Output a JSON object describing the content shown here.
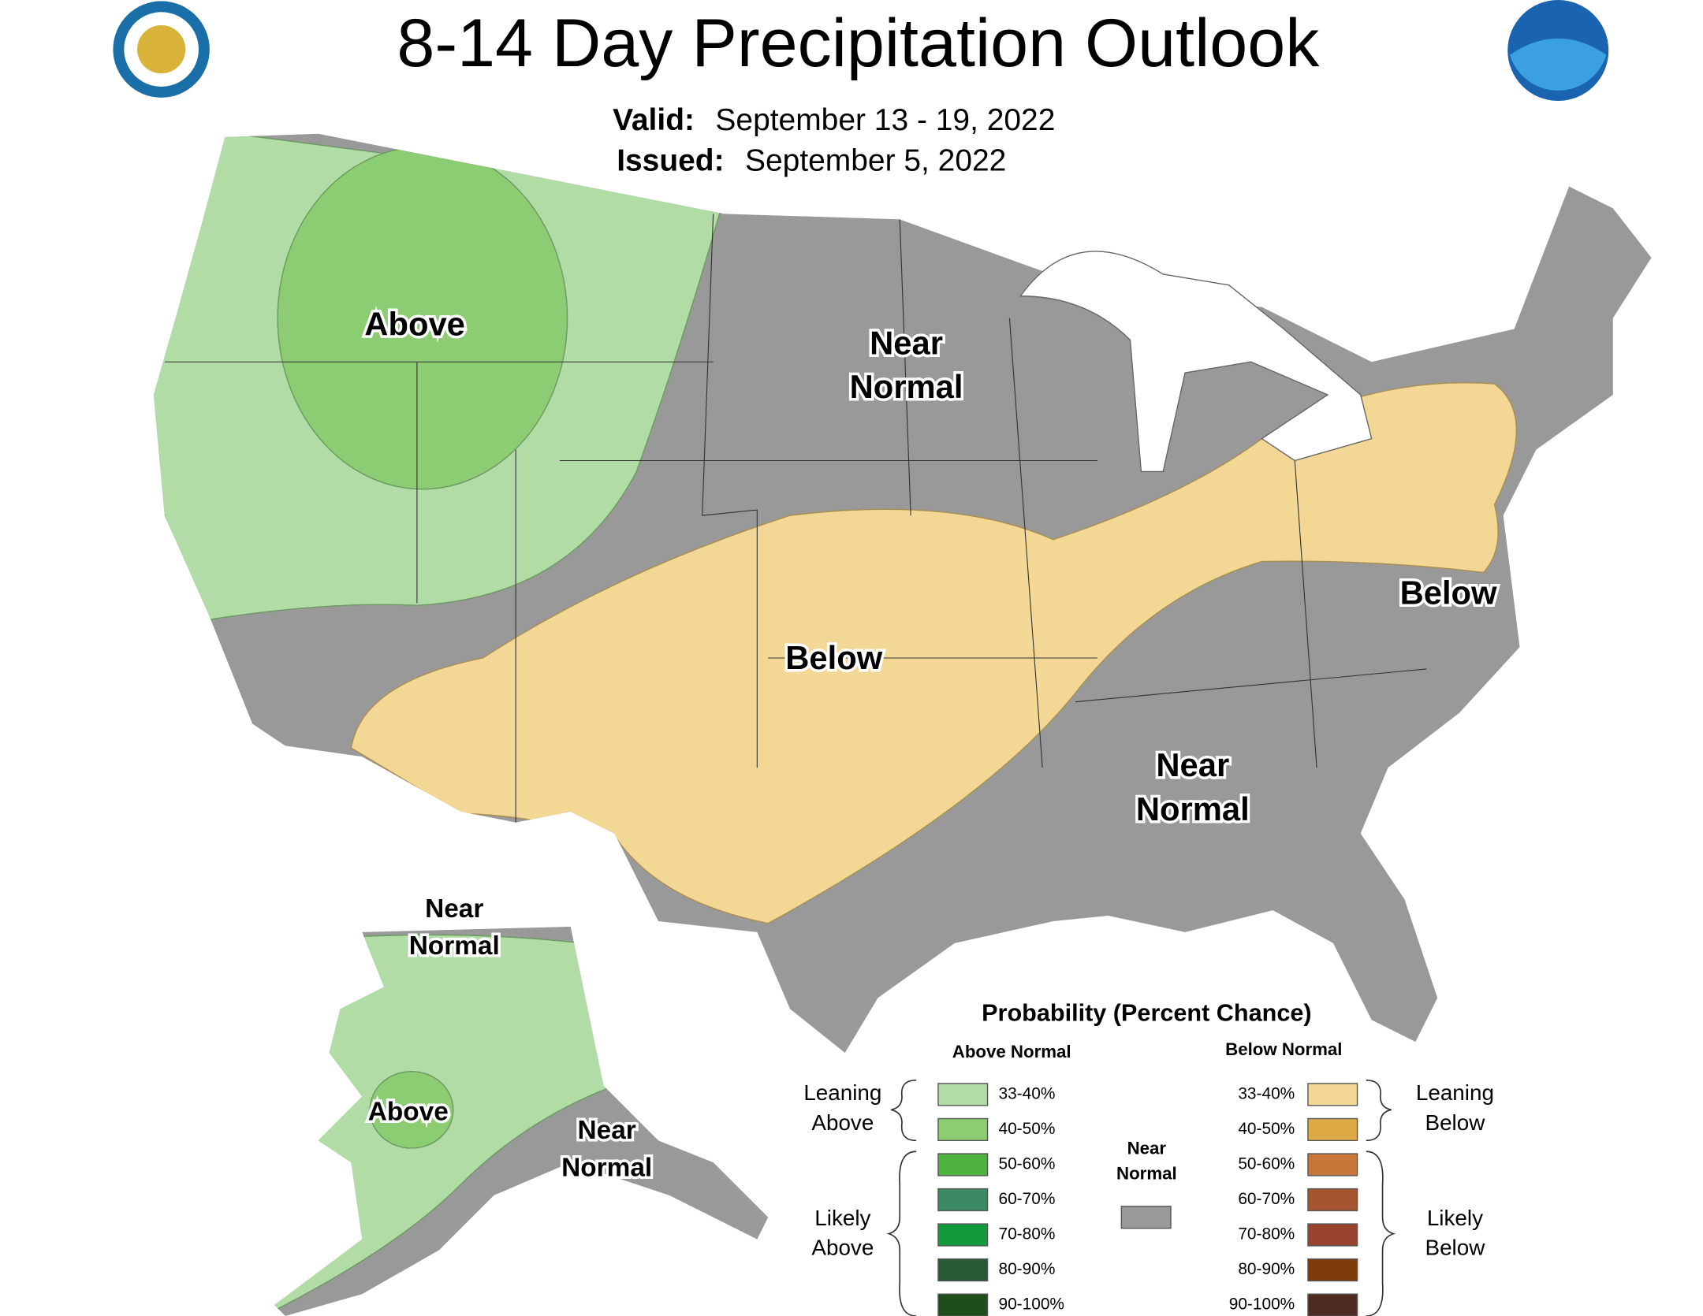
{
  "header": {
    "title": "8-14 Day Precipitation Outlook",
    "valid_label": "Valid:",
    "valid": "September 13 - 19, 2022",
    "issued_label": "Issued:",
    "issued": "September 5, 2022"
  },
  "map_labels": [
    {
      "lines": [
        "Above"
      ]
    },
    {
      "lines": [
        "Near",
        "Normal"
      ]
    },
    {
      "lines": [
        "Below"
      ]
    },
    {
      "lines": [
        "Below"
      ]
    },
    {
      "lines": [
        "Near",
        "Normal"
      ]
    },
    {
      "lines": [
        "Near",
        "Normal"
      ]
    },
    {
      "lines": [
        "Above"
      ]
    },
    {
      "lines": [
        "Near",
        "Normal"
      ]
    }
  ],
  "legend": {
    "title": "Probability (Percent Chance)",
    "above_heading": "Above Normal",
    "below_heading": "Below Normal",
    "above": [
      {
        "range": "33-40%",
        "color": "#b1dca6"
      },
      {
        "range": "40-50%",
        "color": "#8ccc72"
      },
      {
        "range": "50-60%",
        "color": "#4eb43f"
      },
      {
        "range": "60-70%",
        "color": "#3b8a63"
      },
      {
        "range": "70-80%",
        "color": "#139a3d"
      },
      {
        "range": "80-90%",
        "color": "#285a36"
      },
      {
        "range": "90-100%",
        "color": "#1f4d1c"
      }
    ],
    "below": [
      {
        "range": "33-40%",
        "color": "#f2d795"
      },
      {
        "range": "40-50%",
        "color": "#ddaa46"
      },
      {
        "range": "50-60%",
        "color": "#c9763a"
      },
      {
        "range": "60-70%",
        "color": "#a4552f"
      },
      {
        "range": "70-80%",
        "color": "#98432e"
      },
      {
        "range": "80-90%",
        "color": "#7f3a0b"
      },
      {
        "range": "90-100%",
        "color": "#4d2b23"
      }
    ],
    "near": {
      "lines": [
        "Near",
        "Normal"
      ],
      "color": "#999999"
    },
    "leaning_above": [
      "Leaning",
      "Above"
    ],
    "likely_above": [
      "Likely",
      "Above"
    ],
    "leaning_below": [
      "Leaning",
      "Below"
    ],
    "likely_below": [
      "Likely",
      "Below"
    ]
  }
}
